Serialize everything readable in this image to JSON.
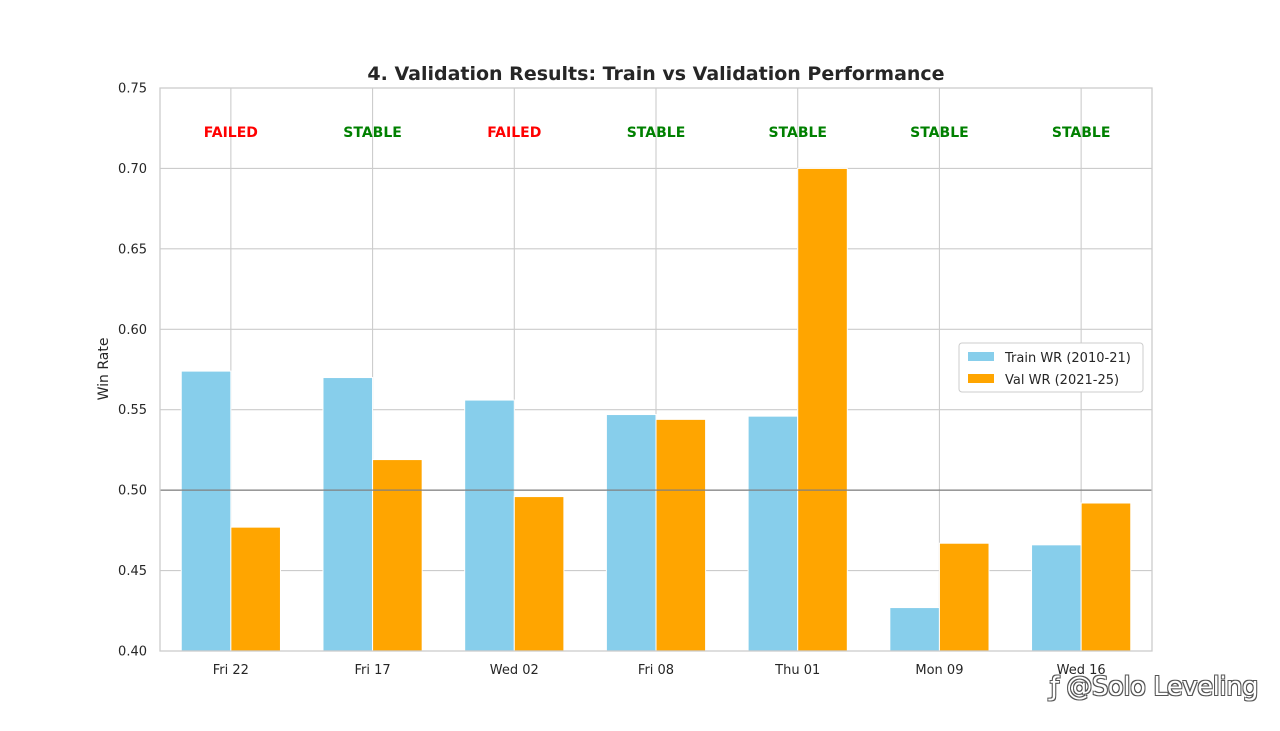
{
  "chart_data": {
    "type": "bar",
    "title": "4. Validation Results: Train vs Validation Performance",
    "xlabel": "",
    "ylabel": "Win Rate",
    "categories": [
      "Fri 22",
      "Fri 17",
      "Wed 02",
      "Fri 08",
      "Thu 01",
      "Mon 09",
      "Wed 16"
    ],
    "series": [
      {
        "name": "Train WR (2010-21)",
        "color": "#87ceeb",
        "values": [
          0.574,
          0.57,
          0.556,
          0.547,
          0.546,
          0.427,
          0.466
        ]
      },
      {
        "name": "Val WR (2021-25)",
        "color": "#ffa500",
        "values": [
          0.477,
          0.519,
          0.496,
          0.544,
          0.7,
          0.467,
          0.492
        ]
      }
    ],
    "status_labels": [
      {
        "text": "FAILED",
        "color": "#ff0000"
      },
      {
        "text": "STABLE",
        "color": "#008000"
      },
      {
        "text": "FAILED",
        "color": "#ff0000"
      },
      {
        "text": "STABLE",
        "color": "#008000"
      },
      {
        "text": "STABLE",
        "color": "#008000"
      },
      {
        "text": "STABLE",
        "color": "#008000"
      },
      {
        "text": "STABLE",
        "color": "#008000"
      }
    ],
    "status_y": 0.7225,
    "ylim": [
      0.4,
      0.75
    ],
    "yticks": [
      "0.40",
      "0.45",
      "0.50",
      "0.55",
      "0.60",
      "0.65",
      "0.70",
      "0.75"
    ],
    "reference_line": 0.5,
    "grid": true,
    "legend_position": "center-right"
  },
  "watermark": "@Solo Leveling"
}
